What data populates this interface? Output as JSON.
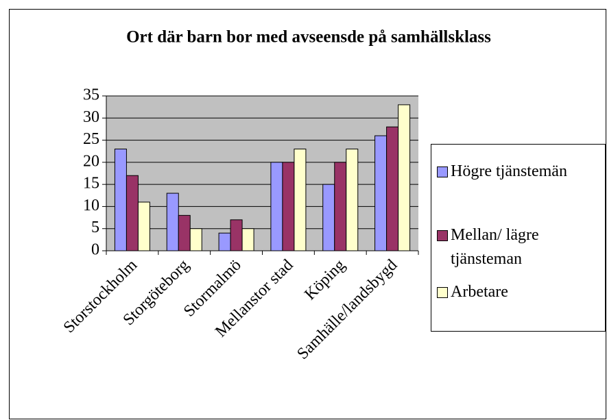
{
  "chart_data": {
    "type": "bar",
    "title": "Ort där barn bor med avseensde på samhällsklass",
    "categories": [
      "Storstockholm",
      "Storgöteborg",
      "Stormalmö",
      "Mellanstor stad",
      "Köping",
      "Samhälle/landsbygd"
    ],
    "series": [
      {
        "name": "Högre tjänstemän",
        "color": "#9999ff",
        "values": [
          23,
          13,
          4,
          20,
          15,
          26
        ]
      },
      {
        "name": "Mellan/ lägre tjänsteman",
        "color": "#993366",
        "values": [
          17,
          8,
          7,
          20,
          20,
          28
        ]
      },
      {
        "name": "Arbetare",
        "color": "#ffffcc",
        "values": [
          11,
          5,
          5,
          23,
          23,
          33
        ]
      }
    ],
    "ylim": [
      0,
      35
    ],
    "yticks": [
      0,
      5,
      10,
      15,
      20,
      25,
      30,
      35
    ],
    "grid": true,
    "legend": "right"
  }
}
